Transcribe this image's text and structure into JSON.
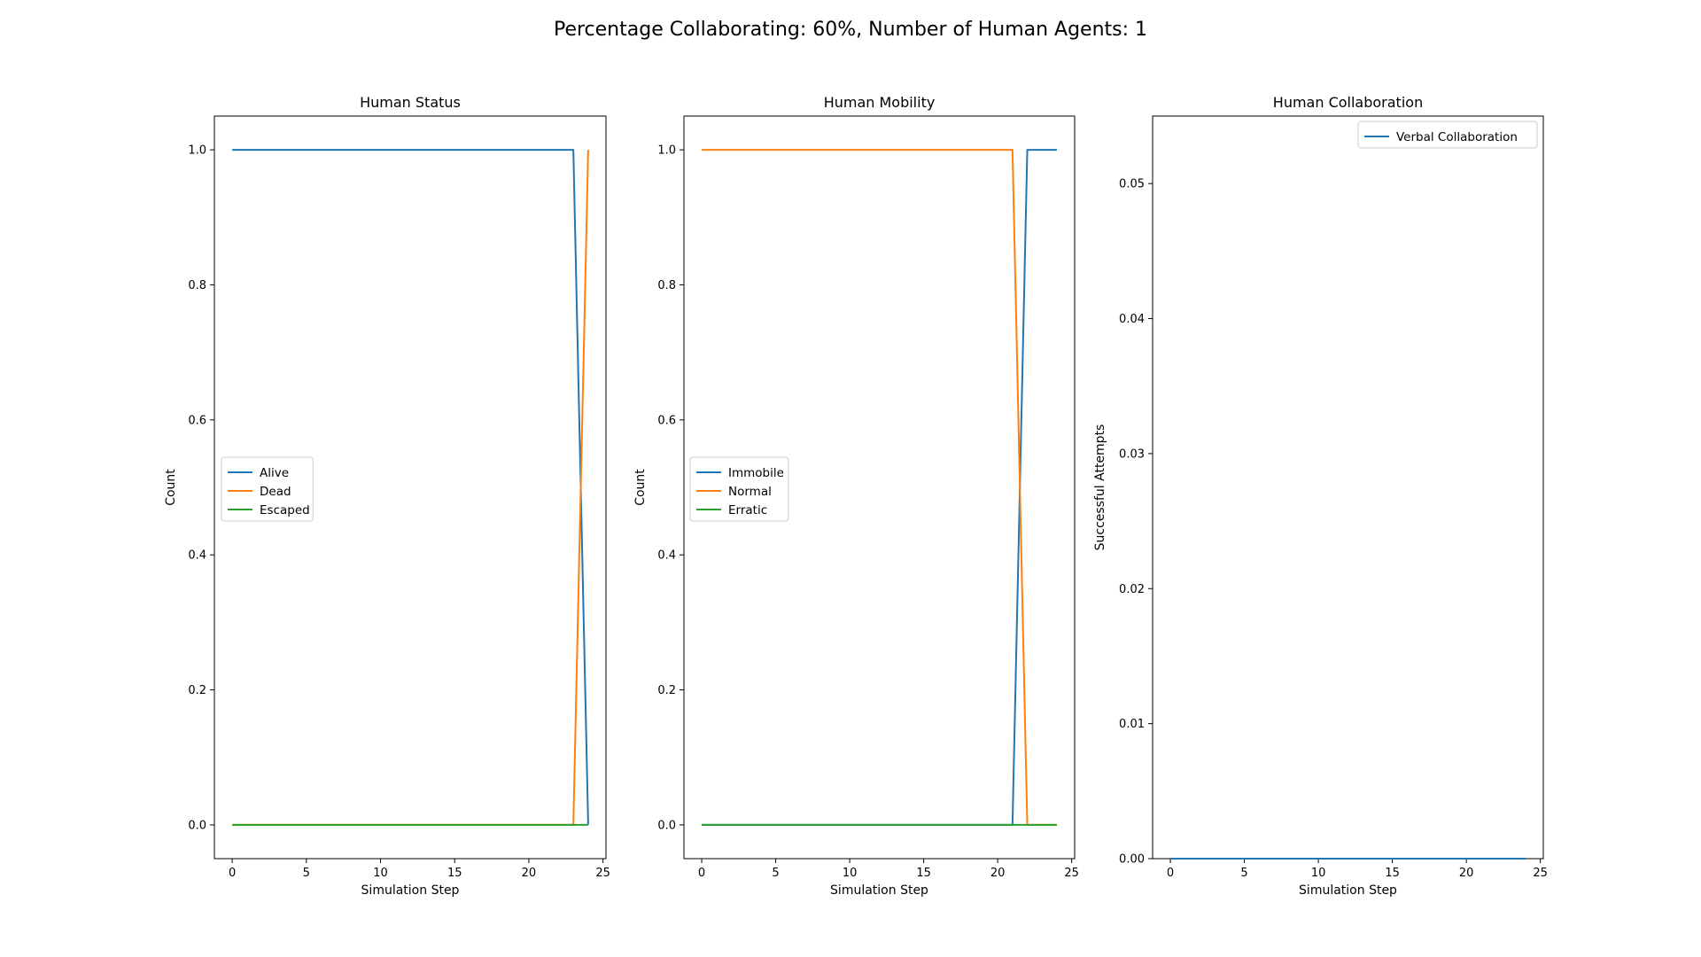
{
  "suptitle": "Percentage Collaborating: 60%, Number of Human Agents: 1",
  "chart_data": [
    {
      "type": "line",
      "title": "Human Status",
      "xlabel": "Simulation Step",
      "ylabel": "Count",
      "xlim": [
        -1.2,
        25.2
      ],
      "ylim": [
        -0.05,
        1.05
      ],
      "xticks": [
        0,
        5,
        10,
        15,
        20,
        25
      ],
      "yticks": [
        0.0,
        0.2,
        0.4,
        0.6,
        0.8,
        1.0
      ],
      "ytick_decimals": 1,
      "legend": "center-left",
      "series": [
        {
          "name": "Alive",
          "color": "#1f77b4",
          "x": [
            0,
            23,
            24
          ],
          "y": [
            1,
            1,
            0
          ]
        },
        {
          "name": "Dead",
          "color": "#ff7f0e",
          "x": [
            0,
            23,
            24
          ],
          "y": [
            0,
            0,
            1
          ]
        },
        {
          "name": "Escaped",
          "color": "#2ca02c",
          "x": [
            0,
            24
          ],
          "y": [
            0,
            0
          ]
        }
      ]
    },
    {
      "type": "line",
      "title": "Human Mobility",
      "xlabel": "Simulation Step",
      "ylabel": "Count",
      "xlim": [
        -1.2,
        25.2
      ],
      "ylim": [
        -0.05,
        1.05
      ],
      "xticks": [
        0,
        5,
        10,
        15,
        20,
        25
      ],
      "yticks": [
        0.0,
        0.2,
        0.4,
        0.6,
        0.8,
        1.0
      ],
      "ytick_decimals": 1,
      "legend": "center-left",
      "series": [
        {
          "name": "Immobile",
          "color": "#1f77b4",
          "x": [
            0,
            21,
            22,
            24
          ],
          "y": [
            0,
            0,
            1,
            1
          ]
        },
        {
          "name": "Normal",
          "color": "#ff7f0e",
          "x": [
            0,
            21,
            22,
            24
          ],
          "y": [
            1,
            1,
            0,
            0
          ]
        },
        {
          "name": "Erratic",
          "color": "#2ca02c",
          "x": [
            0,
            24
          ],
          "y": [
            0,
            0
          ]
        }
      ]
    },
    {
      "type": "line",
      "title": "Human Collaboration",
      "xlabel": "Simulation Step",
      "ylabel": "Successful Attempts",
      "xlim": [
        -1.2,
        25.2
      ],
      "ylim": [
        0,
        0.055
      ],
      "xticks": [
        0,
        5,
        10,
        15,
        20,
        25
      ],
      "yticks": [
        0.0,
        0.01,
        0.02,
        0.03,
        0.04,
        0.05
      ],
      "ytick_decimals": 2,
      "legend": "top-right",
      "series": [
        {
          "name": "Verbal Collaboration",
          "color": "#1f77b4",
          "x": [
            0,
            24
          ],
          "y": [
            0,
            0
          ]
        }
      ]
    }
  ]
}
